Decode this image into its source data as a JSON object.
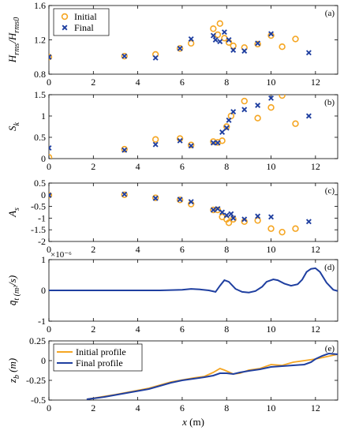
{
  "chart_data": [
    {
      "type": "scatter",
      "panel_label": "(a)",
      "ylabel": "H_rms/H_rms0",
      "xlim": [
        0,
        13
      ],
      "ylim": [
        0.8,
        1.6
      ],
      "yticks": [
        0.8,
        1.2,
        1.6
      ],
      "xticks": [
        0,
        2,
        4,
        6,
        8,
        10,
        12
      ],
      "legend_position": "top-left",
      "series": [
        {
          "name": "Initial",
          "marker": "circle",
          "color": "#F5A623",
          "x": [
            0,
            3.4,
            4.8,
            5.9,
            6.4,
            7.4,
            7.6,
            7.7,
            7.9,
            8.1,
            8.3,
            8.8,
            9.4,
            10.0,
            10.5,
            11.1
          ],
          "y": [
            1.0,
            1.01,
            1.03,
            1.1,
            1.16,
            1.33,
            1.26,
            1.39,
            1.22,
            1.17,
            1.13,
            1.11,
            1.15,
            1.25,
            1.12,
            1.21
          ]
        },
        {
          "name": "Final",
          "marker": "x",
          "color": "#1F3FA0",
          "x": [
            0,
            3.4,
            4.8,
            5.9,
            6.4,
            7.4,
            7.5,
            7.7,
            7.9,
            8.1,
            8.3,
            8.8,
            9.4,
            10.0,
            11.7
          ],
          "y": [
            1.0,
            1.01,
            0.99,
            1.1,
            1.21,
            1.25,
            1.2,
            1.18,
            1.29,
            1.2,
            1.08,
            1.07,
            1.16,
            1.27,
            1.05
          ]
        }
      ]
    },
    {
      "type": "scatter",
      "panel_label": "(b)",
      "ylabel": "S_k",
      "xlim": [
        0,
        13
      ],
      "ylim": [
        0,
        1.5
      ],
      "yticks": [
        0,
        0.5,
        1,
        1.5
      ],
      "xticks": [
        0,
        2,
        4,
        6,
        8,
        10,
        12
      ],
      "series": [
        {
          "name": "Initial",
          "marker": "circle",
          "color": "#F5A623",
          "x": [
            0,
            3.4,
            4.8,
            5.9,
            6.4,
            7.4,
            7.6,
            7.8,
            8.0,
            8.2,
            8.8,
            9.4,
            10.0,
            10.5,
            11.1
          ],
          "y": [
            0.03,
            0.22,
            0.45,
            0.47,
            0.32,
            0.4,
            0.38,
            0.42,
            0.75,
            1.0,
            1.35,
            0.95,
            1.2,
            1.48,
            0.82
          ]
        },
        {
          "name": "Final",
          "marker": "x",
          "color": "#1F3FA0",
          "x": [
            0,
            3.4,
            4.8,
            5.9,
            6.4,
            7.4,
            7.6,
            7.8,
            8.0,
            8.1,
            8.3,
            8.8,
            9.4,
            10.0,
            11.7
          ],
          "y": [
            0.25,
            0.2,
            0.33,
            0.42,
            0.3,
            0.37,
            0.37,
            0.62,
            0.72,
            0.9,
            1.1,
            1.15,
            1.25,
            1.42,
            1.0
          ]
        }
      ]
    },
    {
      "type": "scatter",
      "panel_label": "(c)",
      "ylabel": "A_s",
      "xlim": [
        0,
        13
      ],
      "ylim": [
        -2,
        0.5
      ],
      "yticks": [
        -2,
        -1.5,
        -1,
        -0.5,
        0,
        0.5
      ],
      "xticks": [
        0,
        2,
        4,
        6,
        8,
        10,
        12
      ],
      "series": [
        {
          "name": "Initial",
          "marker": "circle",
          "color": "#F5A623",
          "x": [
            0,
            3.4,
            4.8,
            5.9,
            6.4,
            7.4,
            7.6,
            7.8,
            8.0,
            8.1,
            8.3,
            8.8,
            9.4,
            10.0,
            10.5,
            11.1
          ],
          "y": [
            -0.02,
            0.0,
            -0.13,
            -0.22,
            -0.4,
            -0.65,
            -0.65,
            -0.95,
            -1.05,
            -1.2,
            -1.05,
            -1.15,
            -1.1,
            -1.45,
            -1.6,
            -1.45
          ]
        },
        {
          "name": "Final",
          "marker": "x",
          "color": "#1F3FA0",
          "x": [
            0,
            3.4,
            4.8,
            5.9,
            6.4,
            7.4,
            7.6,
            7.8,
            8.0,
            8.2,
            8.3,
            8.8,
            9.4,
            10.0,
            11.7
          ],
          "y": [
            -0.02,
            0.02,
            -0.15,
            -0.2,
            -0.3,
            -0.65,
            -0.6,
            -0.75,
            -0.88,
            -0.82,
            -1.0,
            -1.05,
            -0.92,
            -0.95,
            -1.15
          ]
        }
      ]
    },
    {
      "type": "line",
      "panel_label": "(d)",
      "ylabel": "q̄_t (m²/s)",
      "y_exponent_label": "×10⁻⁶",
      "xlim": [
        0,
        13
      ],
      "ylim": [
        -1,
        1
      ],
      "yticks": [
        -1,
        0,
        1
      ],
      "xticks": [
        0,
        2,
        4,
        6,
        8,
        10,
        12
      ],
      "series": [
        {
          "color": "#1F3FA0",
          "x": [
            0,
            5.0,
            6.0,
            6.4,
            6.8,
            7.2,
            7.5,
            7.7,
            7.9,
            8.1,
            8.4,
            8.7,
            9.0,
            9.3,
            9.6,
            9.8,
            10.1,
            10.3,
            10.6,
            10.9,
            11.2,
            11.4,
            11.6,
            11.8,
            12.0,
            12.2,
            12.5,
            12.8,
            13.0
          ],
          "y": [
            0,
            0,
            0.02,
            0.05,
            0.03,
            0.0,
            -0.05,
            0.15,
            0.33,
            0.28,
            0.05,
            -0.05,
            -0.07,
            -0.02,
            0.12,
            0.28,
            0.36,
            0.33,
            0.22,
            0.15,
            0.2,
            0.35,
            0.6,
            0.7,
            0.72,
            0.6,
            0.25,
            0.02,
            -0.02
          ]
        }
      ]
    },
    {
      "type": "line",
      "panel_label": "(e)",
      "ylabel": "z_b (m)",
      "xlabel": "x (m)",
      "xlim": [
        0,
        13
      ],
      "ylim": [
        -0.5,
        0.25
      ],
      "yticks": [
        -0.5,
        -0.25,
        0,
        0.25
      ],
      "xticks": [
        0,
        2,
        4,
        6,
        8,
        10,
        12
      ],
      "legend_position": "top-left",
      "series": [
        {
          "name": "Initial profile",
          "color": "#F5A623",
          "x": [
            1.7,
            3.0,
            4.5,
            5.5,
            6.5,
            7.0,
            7.4,
            7.7,
            7.9,
            8.3,
            8.6,
            9.0,
            9.5,
            10.0,
            10.5,
            11.0,
            11.5,
            12.0,
            12.5,
            13.0
          ],
          "y": [
            -0.49,
            -0.43,
            -0.35,
            -0.27,
            -0.22,
            -0.2,
            -0.15,
            -0.1,
            -0.12,
            -0.17,
            -0.16,
            -0.12,
            -0.1,
            -0.05,
            -0.06,
            -0.02,
            0.0,
            0.02,
            0.05,
            0.08
          ]
        },
        {
          "name": "Final profile",
          "color": "#1F3FA0",
          "x": [
            1.7,
            2.5,
            3.5,
            4.5,
            5.0,
            5.5,
            6.0,
            6.5,
            7.0,
            7.4,
            7.7,
            8.0,
            8.3,
            8.6,
            9.0,
            9.5,
            10.0,
            10.5,
            11.0,
            11.5,
            11.8,
            12.0,
            12.3,
            12.6,
            13.0
          ],
          "y": [
            -0.49,
            -0.46,
            -0.41,
            -0.36,
            -0.32,
            -0.28,
            -0.25,
            -0.23,
            -0.21,
            -0.19,
            -0.16,
            -0.16,
            -0.17,
            -0.15,
            -0.13,
            -0.11,
            -0.08,
            -0.07,
            -0.06,
            -0.05,
            -0.02,
            0.02,
            0.06,
            0.09,
            0.08
          ]
        }
      ]
    }
  ]
}
